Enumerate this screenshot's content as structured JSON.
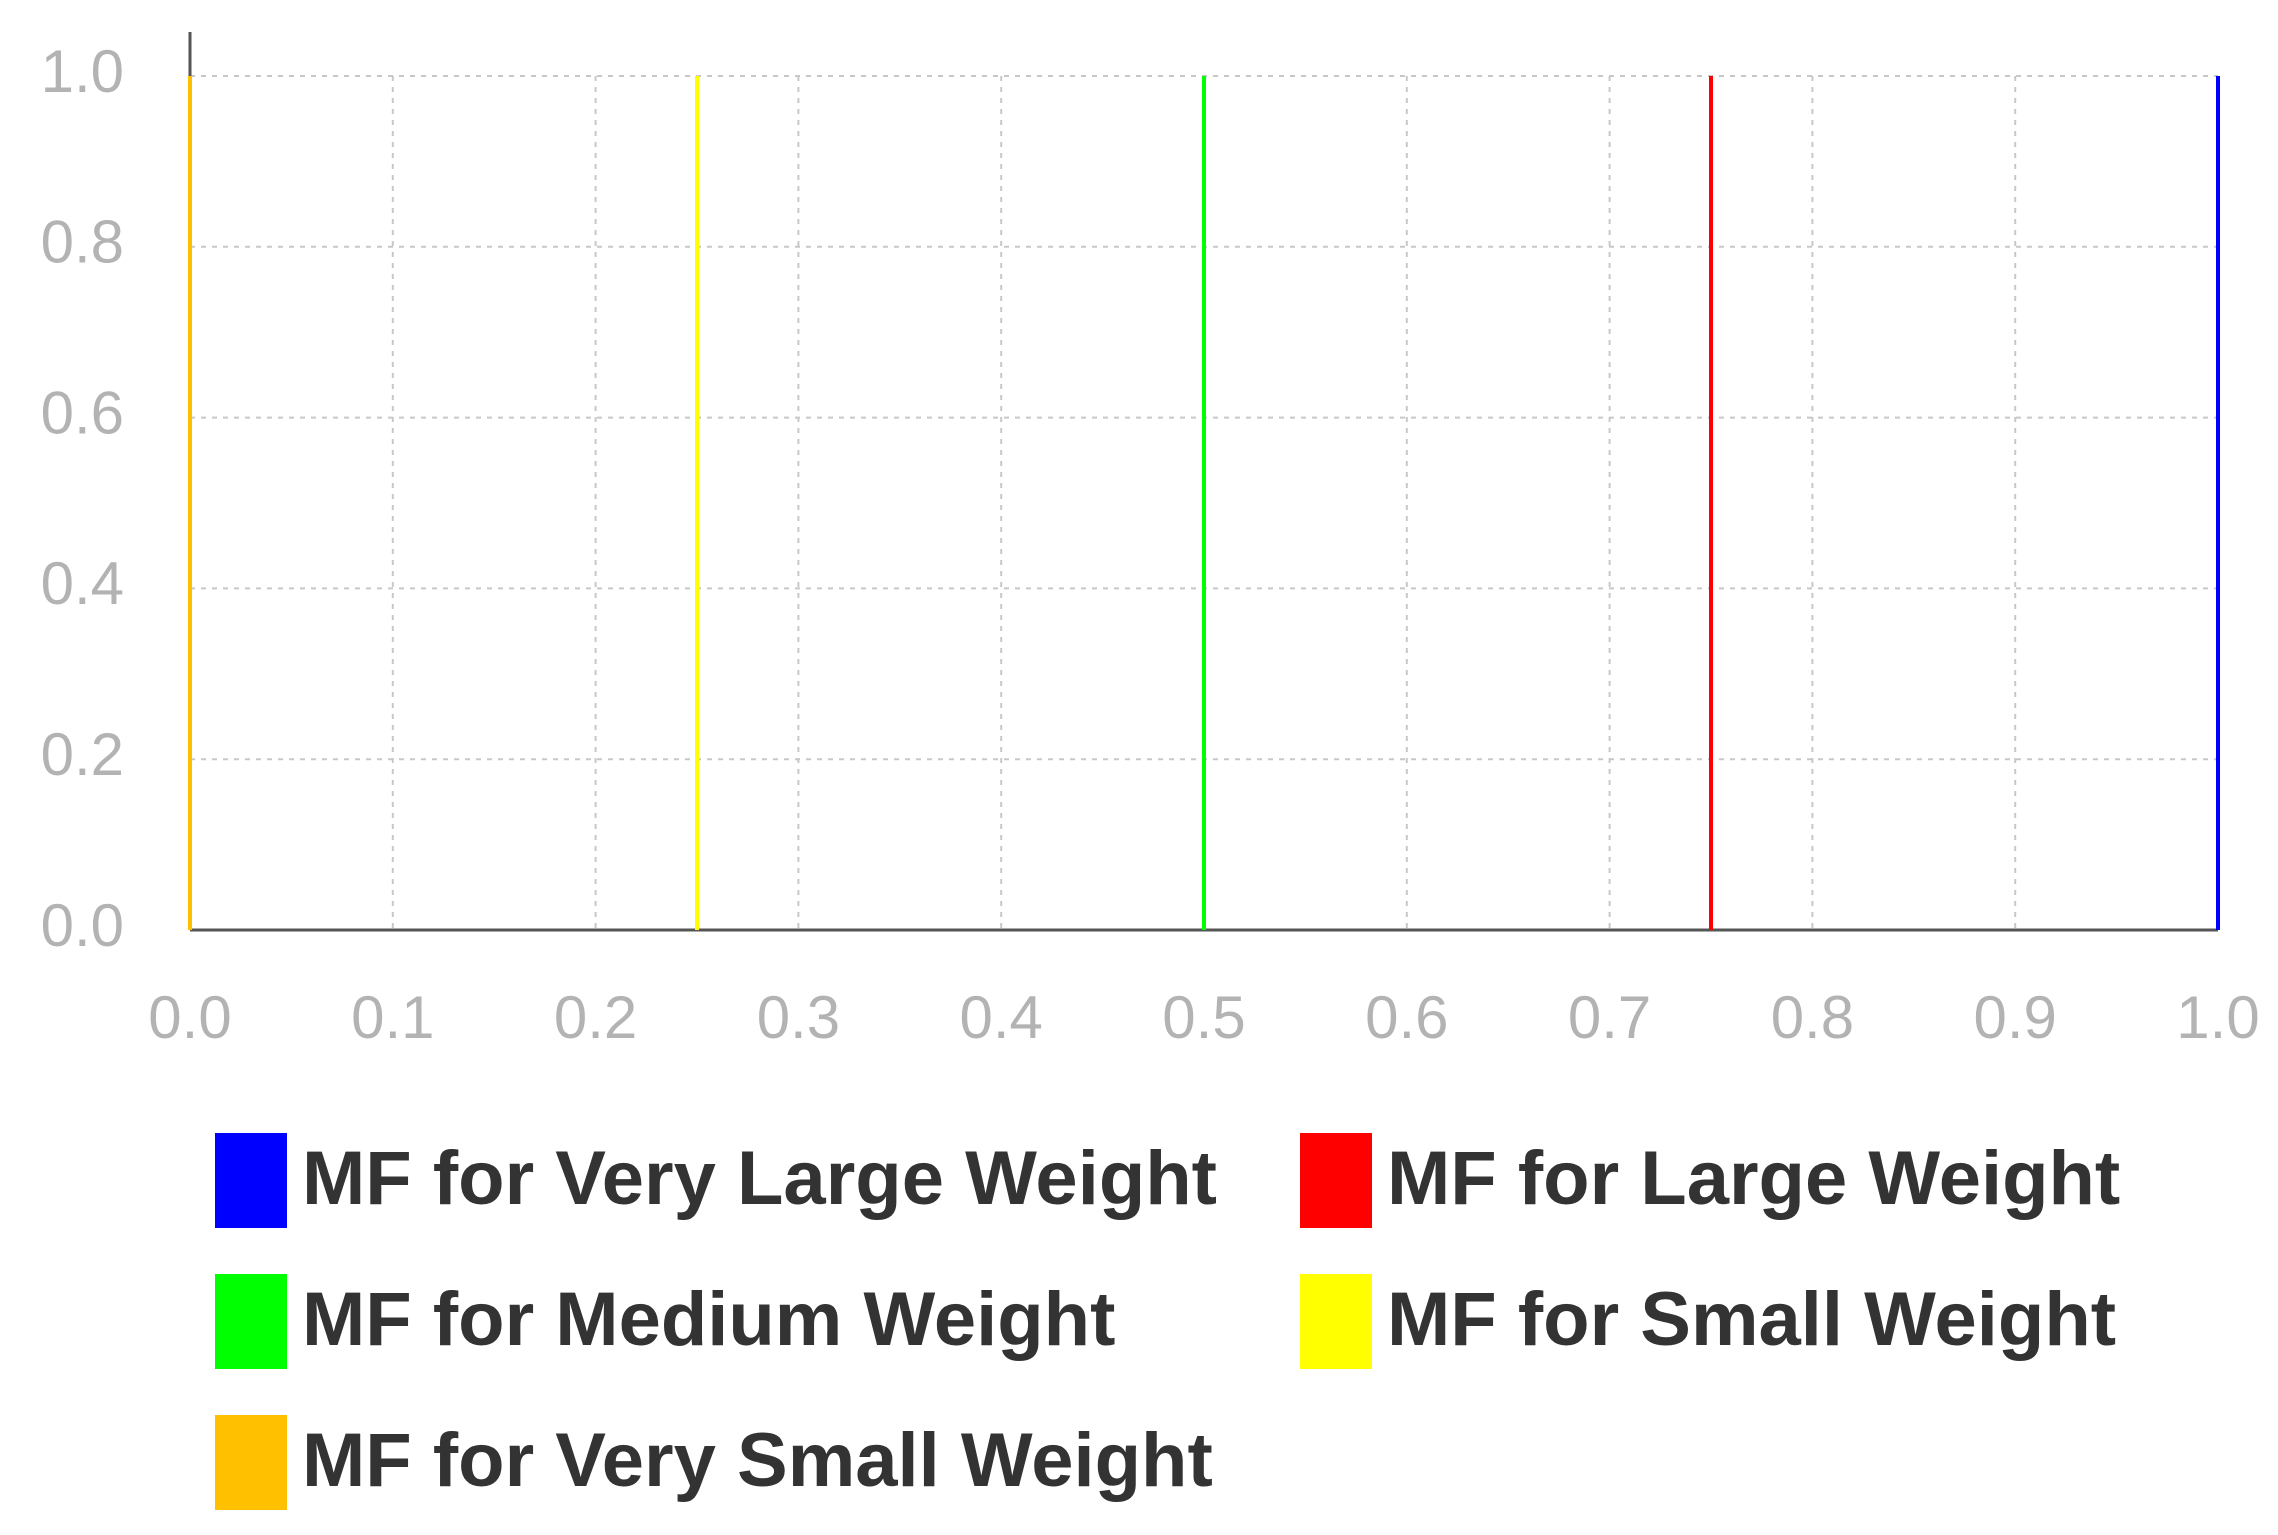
{
  "chart_data": {
    "type": "line",
    "series": [
      {
        "name": "MF for Very Large Weight",
        "color": "#0000ff",
        "x": [
          1,
          1
        ],
        "values": [
          0,
          1
        ]
      },
      {
        "name": "MF for Large Weight",
        "color": "#ff0000",
        "x": [
          0.75,
          0.75
        ],
        "values": [
          0,
          1
        ]
      },
      {
        "name": "MF for Medium Weight",
        "color": "#00ff00",
        "x": [
          0.5,
          0.5
        ],
        "values": [
          0,
          1
        ]
      },
      {
        "name": "MF for Small Weight",
        "color": "#ffff00",
        "x": [
          0.25,
          0.25
        ],
        "values": [
          0,
          1
        ]
      },
      {
        "name": "MF for Very Small Weight",
        "color": "#ffc000",
        "x": [
          0,
          0
        ],
        "values": [
          0,
          1
        ]
      }
    ],
    "xlim": [
      0,
      1
    ],
    "ylim": [
      0,
      1
    ],
    "xticks": [
      {
        "value": 0,
        "label": "0.0"
      },
      0.1,
      0.2,
      0.3,
      0.4,
      0.5,
      0.6,
      0.7,
      0.8,
      0.9,
      {
        "value": 1,
        "label": "1.0"
      }
    ],
    "yticks": [
      {
        "value": 0,
        "label": "0.0"
      },
      0.2,
      0.4,
      0.6,
      0.8,
      {
        "value": 1,
        "label": "1.0"
      }
    ],
    "grid": true,
    "legend": "bottom"
  }
}
